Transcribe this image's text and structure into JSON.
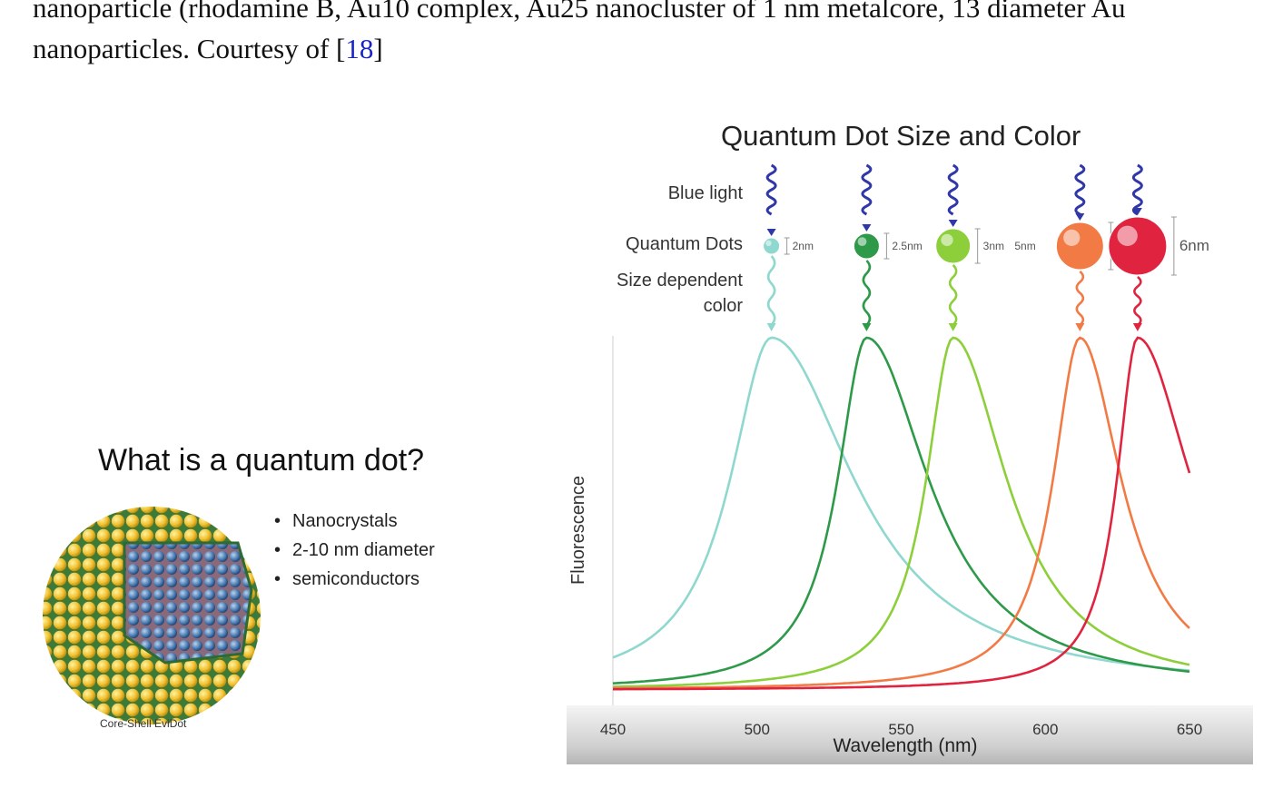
{
  "caption": {
    "line1": "nanoparticle (rhodamine B, Au10 complex, Au25 nanocluster of 1 nm metalcore, 13 diameter Au",
    "line2_before": "nanoparticles. Courtesy of [",
    "line2_ref": "18",
    "line2_after": "]"
  },
  "left_figure": {
    "title": "What is a quantum dot?",
    "bullets": [
      "Nanocrystals",
      "2-10 nm diameter",
      "semiconductors"
    ],
    "dot_caption": "Core-Shell EviDot"
  },
  "right_figure": {
    "title": "Quantum Dot Size and Color",
    "row_labels": {
      "blue_light": "Blue light",
      "quantum_dots": "Quantum Dots",
      "size_dependent": "Size dependent",
      "color": "color"
    },
    "dots": [
      {
        "size": "2nm",
        "color": "#8fd8cf",
        "peak": 505
      },
      {
        "size": "2.5nm",
        "color": "#2e9a49",
        "peak": 538
      },
      {
        "size": "3nm",
        "color": "#8ccf3a",
        "peak": 568
      },
      {
        "size": "5nm",
        "color": "#f27a45",
        "peak": 612
      },
      {
        "size": "6nm",
        "color": "#e0243f",
        "peak": 632
      }
    ]
  },
  "chart_data": {
    "type": "line",
    "title": "Quantum Dot Size and Color",
    "xlabel": "Wavelength (nm)",
    "ylabel": "Fluorescence",
    "xlim": [
      450,
      650
    ],
    "xticks": [
      450,
      500,
      550,
      600,
      650
    ],
    "series": [
      {
        "name": "2nm",
        "color": "#8fd8cf",
        "peak_x": 505
      },
      {
        "name": "2.5nm",
        "color": "#2e9a49",
        "peak_x": 538
      },
      {
        "name": "3nm",
        "color": "#8ccf3a",
        "peak_x": 568
      },
      {
        "name": "5nm",
        "color": "#f27a45",
        "peak_x": 612
      },
      {
        "name": "6nm",
        "color": "#e0243f",
        "peak_x": 632
      }
    ]
  }
}
